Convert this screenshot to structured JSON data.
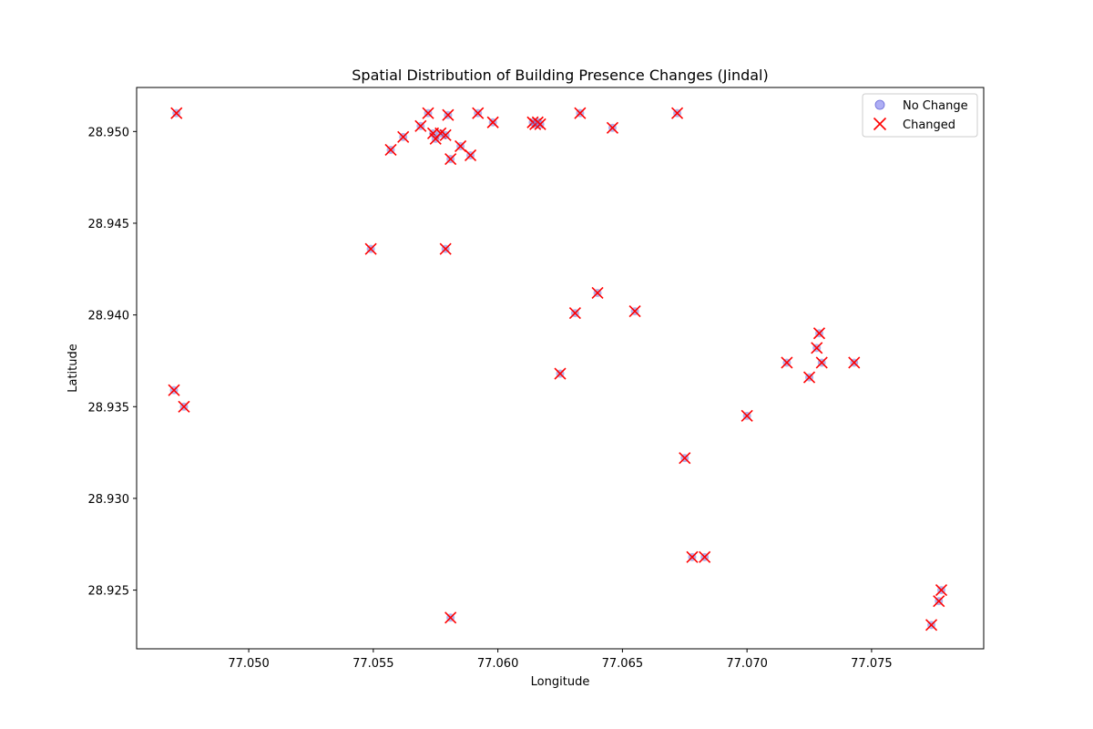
{
  "chart_data": {
    "type": "scatter",
    "title": "Spatial Distribution of Building Presence Changes (Jindal)",
    "xlabel": "Longitude",
    "ylabel": "Latitude",
    "xlim": [
      77.0455,
      77.0795
    ],
    "ylim": [
      28.9218,
      28.9524
    ],
    "xticks": [
      77.05,
      77.055,
      77.06,
      77.065,
      77.07,
      77.075
    ],
    "xtick_labels": [
      "77.050",
      "77.055",
      "77.060",
      "77.065",
      "77.070",
      "77.075"
    ],
    "yticks": [
      28.925,
      28.93,
      28.935,
      28.94,
      28.945,
      28.95
    ],
    "ytick_labels": [
      "28.925",
      "28.930",
      "28.935",
      "28.940",
      "28.945",
      "28.950"
    ],
    "grid": false,
    "legend_position": "top-right",
    "legend": [
      {
        "label": "No Change",
        "marker": "circle",
        "color": "#8c8cf0"
      },
      {
        "label": "Changed",
        "marker": "x",
        "color": "#ff0000"
      }
    ],
    "series": [
      {
        "name": "Changed",
        "marker": "x",
        "color": "#ff0000",
        "underlay_color": "#8080e0",
        "points": [
          [
            77.0471,
            28.951
          ],
          [
            77.0557,
            28.949
          ],
          [
            77.0569,
            28.9503
          ],
          [
            77.0572,
            28.951
          ],
          [
            77.0574,
            28.9499
          ],
          [
            77.0575,
            28.9496
          ],
          [
            77.0577,
            28.9499
          ],
          [
            77.0579,
            28.9498
          ],
          [
            77.058,
            28.9509
          ],
          [
            77.0581,
            28.9485
          ],
          [
            77.0585,
            28.9492
          ],
          [
            77.0589,
            28.9487
          ],
          [
            77.0592,
            28.951
          ],
          [
            77.0598,
            28.9505
          ],
          [
            77.0614,
            28.9505
          ],
          [
            77.0615,
            28.9504
          ],
          [
            77.0616,
            28.9505
          ],
          [
            77.0617,
            28.9504
          ],
          [
            77.0633,
            28.951
          ],
          [
            77.0646,
            28.9502
          ],
          [
            77.0672,
            28.951
          ],
          [
            77.0562,
            28.9497
          ],
          [
            77.0549,
            28.9436
          ],
          [
            77.0579,
            28.9436
          ],
          [
            77.064,
            28.9412
          ],
          [
            77.0631,
            28.9401
          ],
          [
            77.0655,
            28.9402
          ],
          [
            77.0625,
            28.9368
          ],
          [
            77.047,
            28.9359
          ],
          [
            77.0474,
            28.935
          ],
          [
            77.0729,
            28.939
          ],
          [
            77.0728,
            28.9382
          ],
          [
            77.073,
            28.9374
          ],
          [
            77.0716,
            28.9374
          ],
          [
            77.0743,
            28.9374
          ],
          [
            77.0725,
            28.9366
          ],
          [
            77.07,
            28.9345
          ],
          [
            77.0675,
            28.9322
          ],
          [
            77.0678,
            28.9268
          ],
          [
            77.0683,
            28.9268
          ],
          [
            77.0581,
            28.9235
          ],
          [
            77.0778,
            28.925
          ],
          [
            77.0777,
            28.9244
          ],
          [
            77.0774,
            28.9231
          ]
        ]
      }
    ]
  }
}
